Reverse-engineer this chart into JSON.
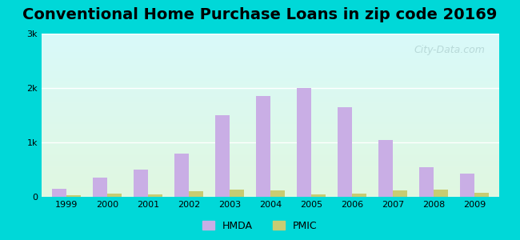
{
  "title": "Conventional Home Purchase Loans in zip code 20169",
  "years": [
    1999,
    2000,
    2001,
    2002,
    2003,
    2004,
    2005,
    2006,
    2007,
    2008,
    2009
  ],
  "hmda": [
    150,
    350,
    500,
    800,
    1500,
    1850,
    2000,
    1650,
    1050,
    550,
    425
  ],
  "pmic": [
    30,
    55,
    50,
    110,
    130,
    120,
    50,
    55,
    120,
    130,
    80
  ],
  "hmda_color": "#c9aee5",
  "pmic_color": "#c8cc72",
  "ylim": [
    0,
    3000
  ],
  "yticks": [
    0,
    1000,
    2000,
    3000
  ],
  "ytick_labels": [
    "0",
    "1k",
    "2k",
    "3k"
  ],
  "bar_width": 0.35,
  "background_top": "#cef5f5",
  "background_bottom": "#d8f0d8",
  "title_fontsize": 14,
  "outer_bg": "#00d8d8",
  "watermark": "City-Data.com"
}
